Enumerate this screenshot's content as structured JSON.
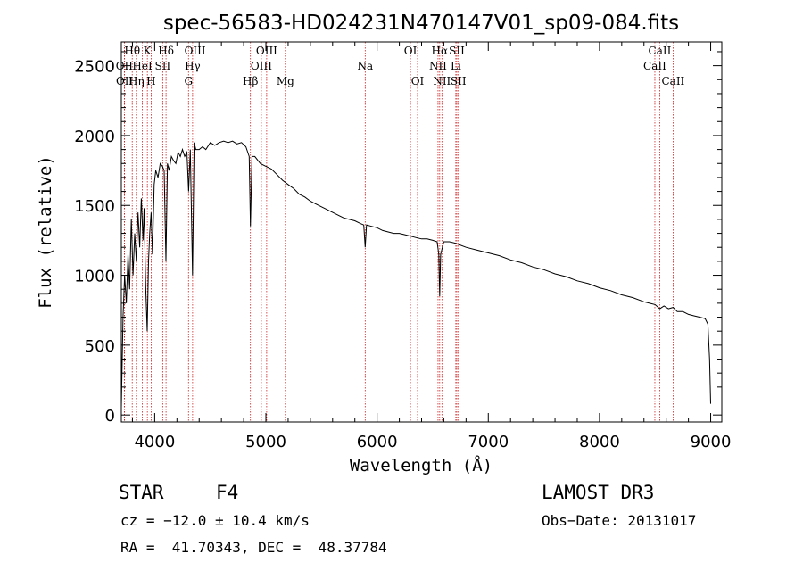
{
  "chart_data": {
    "type": "line",
    "title": "spec-56583-HD024231N470147V01_sp09-084.fits",
    "xlabel": "Wavelength (Å)",
    "ylabel": "Flux (relative)",
    "xlim": [
      3700,
      9100
    ],
    "ylim": [
      -50,
      2670
    ],
    "xticks": [
      4000,
      5000,
      6000,
      7000,
      8000,
      9000
    ],
    "yticks": [
      0,
      500,
      1000,
      1500,
      2000,
      2500
    ],
    "grid": false,
    "series": [
      {
        "name": "flux",
        "x": [
          3700,
          3715,
          3730,
          3745,
          3760,
          3775,
          3790,
          3805,
          3820,
          3835,
          3850,
          3865,
          3880,
          3895,
          3905,
          3920,
          3933,
          3945,
          3955,
          3968,
          3980,
          3995,
          4010,
          4030,
          4050,
          4070,
          4085,
          4101,
          4115,
          4130,
          4150,
          4170,
          4190,
          4210,
          4230,
          4250,
          4270,
          4290,
          4305,
          4320,
          4340,
          4355,
          4370,
          4400,
          4430,
          4460,
          4500,
          4540,
          4580,
          4620,
          4660,
          4700,
          4740,
          4780,
          4820,
          4850,
          4861,
          4875,
          4900,
          4950,
          5000,
          5050,
          5100,
          5150,
          5200,
          5250,
          5300,
          5350,
          5400,
          5450,
          5500,
          5550,
          5600,
          5650,
          5700,
          5750,
          5800,
          5850,
          5880,
          5893,
          5905,
          5950,
          6000,
          6050,
          6100,
          6150,
          6200,
          6250,
          6300,
          6350,
          6400,
          6450,
          6500,
          6540,
          6555,
          6563,
          6572,
          6600,
          6650,
          6700,
          6800,
          6900,
          7000,
          7100,
          7200,
          7300,
          7400,
          7500,
          7600,
          7700,
          7800,
          7900,
          8000,
          8100,
          8200,
          8300,
          8400,
          8450,
          8500,
          8542,
          8580,
          8620,
          8662,
          8700,
          8750,
          8800,
          8850,
          8900,
          8950,
          8975,
          8990,
          9000
        ],
        "values": [
          50,
          700,
          1000,
          800,
          1150,
          900,
          1400,
          1000,
          1300,
          1100,
          1450,
          1200,
          1550,
          1250,
          1480,
          900,
          600,
          1100,
          1300,
          1450,
          1150,
          1650,
          1750,
          1700,
          1800,
          1780,
          1750,
          1100,
          1800,
          1750,
          1850,
          1820,
          1800,
          1880,
          1850,
          1900,
          1850,
          1880,
          1600,
          1900,
          1000,
          1950,
          1900,
          1900,
          1920,
          1900,
          1950,
          1930,
          1950,
          1960,
          1950,
          1960,
          1940,
          1950,
          1920,
          1850,
          1350,
          1850,
          1850,
          1800,
          1780,
          1760,
          1720,
          1680,
          1650,
          1620,
          1580,
          1560,
          1530,
          1510,
          1490,
          1470,
          1450,
          1430,
          1410,
          1400,
          1390,
          1370,
          1360,
          1200,
          1360,
          1350,
          1340,
          1320,
          1310,
          1300,
          1300,
          1290,
          1280,
          1270,
          1260,
          1260,
          1250,
          1240,
          1150,
          850,
          1150,
          1240,
          1240,
          1230,
          1200,
          1180,
          1160,
          1140,
          1110,
          1090,
          1060,
          1040,
          1010,
          990,
          960,
          940,
          910,
          890,
          860,
          840,
          810,
          800,
          790,
          760,
          780,
          760,
          770,
          740,
          740,
          720,
          710,
          700,
          690,
          650,
          400,
          80
        ]
      }
    ],
    "spectral_lines": [
      {
        "label": "Hθ",
        "x": 3798,
        "row": 1
      },
      {
        "label": "OII",
        "x": 3727,
        "row": 2
      },
      {
        "label": "OII",
        "x": 3729,
        "row": 3
      },
      {
        "label": "Hη",
        "x": 3835,
        "row": 3
      },
      {
        "label": "HeI",
        "x": 3889,
        "row": 2
      },
      {
        "label": "K",
        "x": 3934,
        "row": 1
      },
      {
        "label": "H",
        "x": 3968,
        "row": 3
      },
      {
        "label": "SII",
        "x": 4072,
        "row": 2
      },
      {
        "label": "Hδ",
        "x": 4102,
        "row": 1
      },
      {
        "label": "G",
        "x": 4304,
        "row": 3
      },
      {
        "label": "OIII",
        "x": 4363,
        "row": 1
      },
      {
        "label": "Hγ",
        "x": 4341,
        "row": 2
      },
      {
        "label": "Hβ",
        "x": 4861,
        "row": 3
      },
      {
        "label": "OIII",
        "x": 5007,
        "row": 1
      },
      {
        "label": "OIII",
        "x": 4959,
        "row": 2
      },
      {
        "label": "Mg",
        "x": 5175,
        "row": 3
      },
      {
        "label": "Na",
        "x": 5893,
        "row": 2
      },
      {
        "label": "OI",
        "x": 6300,
        "row": 1
      },
      {
        "label": "OI",
        "x": 6364,
        "row": 3
      },
      {
        "label": "Hα",
        "x": 6563,
        "row": 1
      },
      {
        "label": "NII",
        "x": 6548,
        "row": 2
      },
      {
        "label": "NII",
        "x": 6583,
        "row": 3
      },
      {
        "label": "SII",
        "x": 6717,
        "row": 1
      },
      {
        "label": "Li",
        "x": 6708,
        "row": 2
      },
      {
        "label": "SII",
        "x": 6731,
        "row": 3
      },
      {
        "label": "CaII",
        "x": 8542,
        "row": 1
      },
      {
        "label": "CaII",
        "x": 8498,
        "row": 2
      },
      {
        "label": "CaII",
        "x": 8662,
        "row": 3
      }
    ]
  },
  "info": {
    "class": "STAR",
    "subclass": "F4",
    "cz": "cz = −12.0 ± 10.4 km/s",
    "radec": "RA =  41.70343, DEC =  48.37784",
    "survey": "LAMOST DR3",
    "obsdate": "Obs−Date: 20131017"
  },
  "colors": {
    "line_marker": "#cc2222",
    "spectrum": "#000000"
  }
}
